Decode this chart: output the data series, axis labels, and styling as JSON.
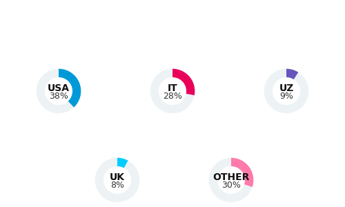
{
  "charts": [
    {
      "label": "USA",
      "pct": 38,
      "color": "#0099d8",
      "row": 0,
      "col": 0
    },
    {
      "label": "IT",
      "pct": 28,
      "color": "#e8005a",
      "row": 0,
      "col": 1
    },
    {
      "label": "UZ",
      "pct": 9,
      "color": "#6655bb",
      "row": 0,
      "col": 2
    },
    {
      "label": "UK",
      "pct": 8,
      "color": "#00ccff",
      "row": 1,
      "col": 0
    },
    {
      "label": "OTHER",
      "pct": 30,
      "color": "#ff7aaa",
      "row": 1,
      "col": 1
    }
  ],
  "bg_color": "#ffffff",
  "ring_bg_color": "#edf3f5",
  "label_fontsize": 10,
  "pct_fontsize": 9,
  "label_fontweight": "bold"
}
